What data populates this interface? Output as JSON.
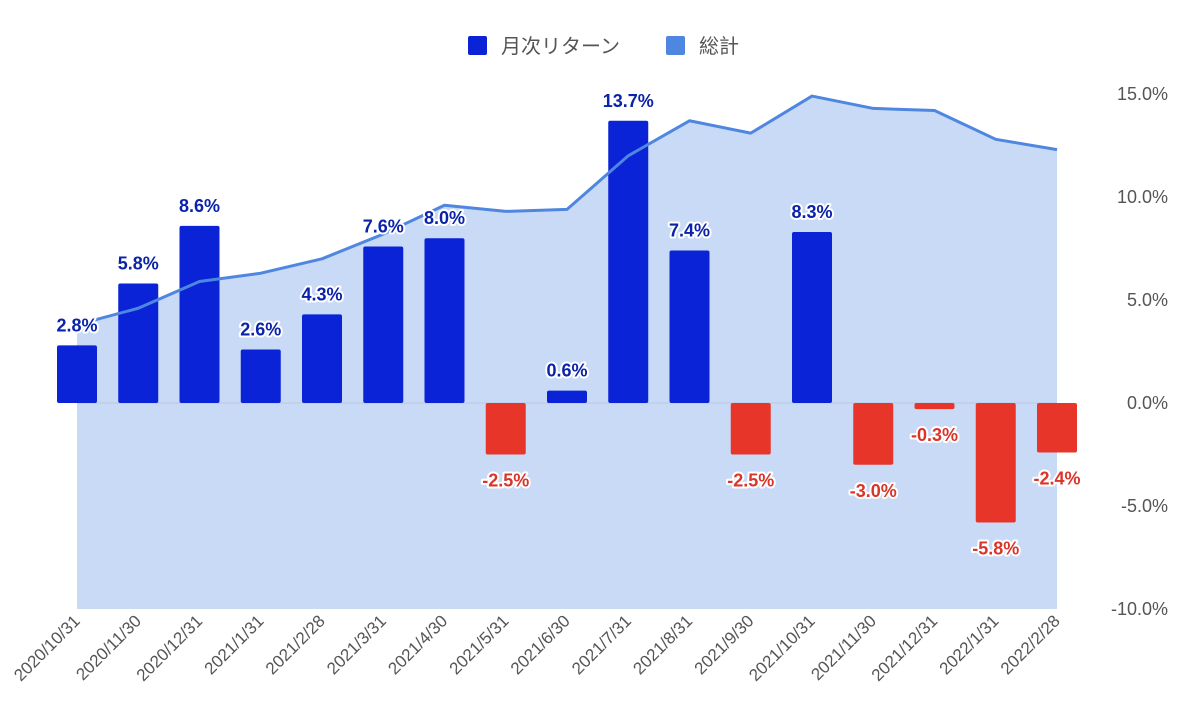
{
  "chart_data": {
    "type": "bar",
    "categories": [
      "2020/10/31",
      "2020/11/30",
      "2020/12/31",
      "2021/1/31",
      "2021/2/28",
      "2021/3/31",
      "2021/4/30",
      "2021/5/31",
      "2021/6/30",
      "2021/7/31",
      "2021/8/31",
      "2021/9/30",
      "2021/10/31",
      "2021/11/30",
      "2021/12/31",
      "2022/1/31",
      "2022/2/28"
    ],
    "series": [
      {
        "name": "月次リターン",
        "kind": "bar",
        "values": [
          2.8,
          5.8,
          8.6,
          2.6,
          4.3,
          7.6,
          8.0,
          -2.5,
          0.6,
          13.7,
          7.4,
          -2.5,
          8.3,
          -3.0,
          -0.3,
          -5.8,
          -2.4
        ],
        "labels": [
          "2.8%",
          "5.8%",
          "8.6%",
          "2.6%",
          "4.3%",
          "7.6%",
          "8.0%",
          "-2.5%",
          "0.6%",
          "13.7%",
          "7.4%",
          "-2.5%",
          "8.3%",
          "-3.0%",
          "-0.3%",
          "-5.8%",
          "-2.4%"
        ],
        "color_positive": "#0a23d6",
        "color_negative": "#e8352a"
      },
      {
        "name": "総計",
        "kind": "area",
        "values": [
          3.8,
          4.6,
          5.9,
          6.3,
          7.0,
          8.2,
          9.6,
          9.3,
          9.4,
          12.0,
          13.7,
          13.1,
          14.9,
          14.3,
          14.2,
          12.8,
          12.3
        ],
        "line_color": "#4f86e0",
        "fill_color": "#c9daf6"
      }
    ],
    "y_axis": {
      "position": "right",
      "ticks": [
        15,
        10,
        5,
        0,
        -5,
        -10
      ],
      "tick_labels": [
        "15.0%",
        "10.0%",
        "5.0%",
        "0.0%",
        "-5.0%",
        "-10.0%"
      ],
      "ylim": [
        -10,
        15
      ]
    },
    "legend": {
      "placement": "top-center",
      "items": [
        {
          "label": "月次リターン",
          "color": "#0a23d6"
        },
        {
          "label": "総計",
          "color": "#4f86e0"
        }
      ]
    },
    "title": "",
    "xlabel": "",
    "ylabel": ""
  }
}
